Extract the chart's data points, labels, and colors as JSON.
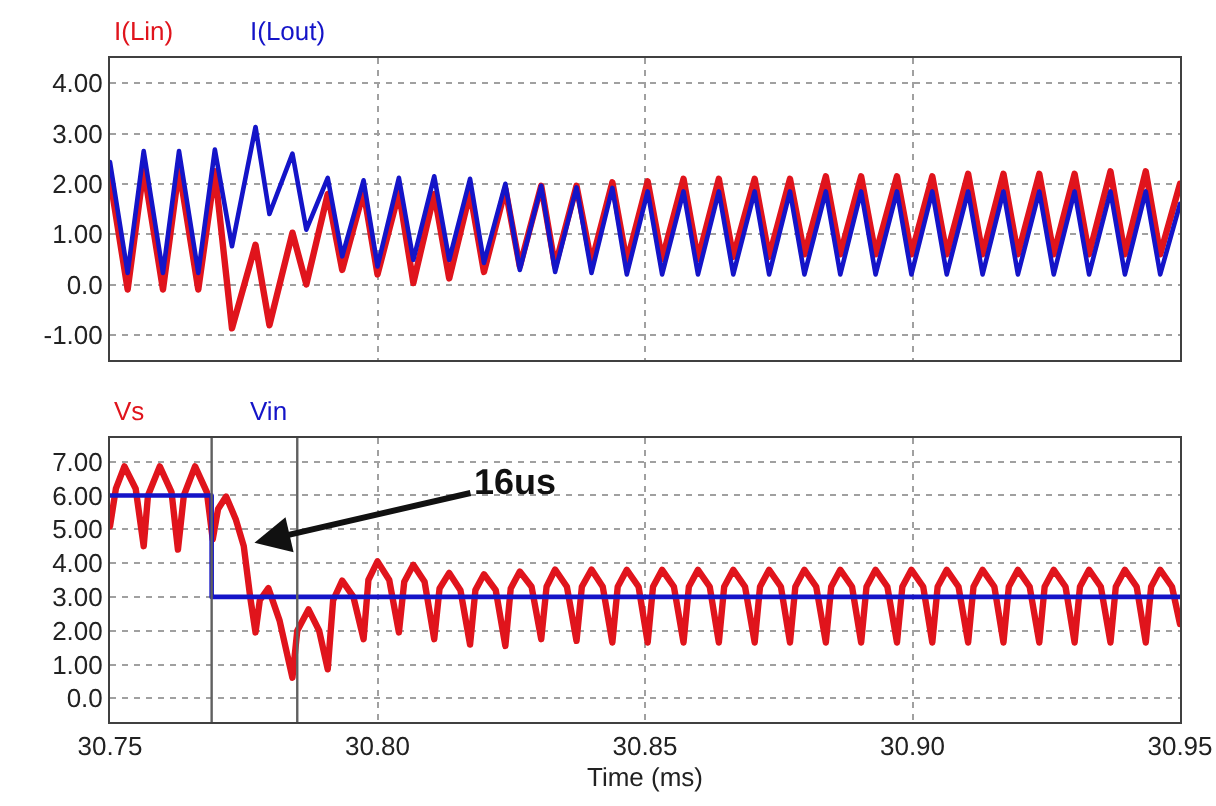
{
  "chart_data": [
    {
      "type": "line",
      "legend": "top left",
      "grid": true,
      "tick_labels": "y",
      "xlim": [
        30.75,
        30.95
      ],
      "xticks": [
        {
          "value": 30.75,
          "label": null
        },
        {
          "value": 30.8,
          "label": null
        },
        {
          "value": 30.85,
          "label": null
        },
        {
          "value": 30.9,
          "label": null
        },
        {
          "value": 30.95,
          "label": null
        }
      ],
      "ylim": [
        -1.5,
        4.5
      ],
      "yticks": [
        {
          "value": 4,
          "label": "4.00"
        },
        {
          "value": 3,
          "label": "3.00"
        },
        {
          "value": 2,
          "label": "2.00"
        },
        {
          "value": 1,
          "label": "1.00"
        },
        {
          "value": 0,
          "label": "0.0"
        },
        {
          "value": -1,
          "label": "-1.00"
        }
      ],
      "x": [
        30.75,
        30.7533,
        30.7563,
        30.7599,
        30.7629,
        30.7665,
        30.7696,
        30.7728,
        30.7772,
        30.7798,
        30.7841,
        30.7867,
        30.7907,
        30.7934,
        30.7974,
        30.8,
        30.804,
        30.8067,
        30.8106,
        30.8134,
        30.8173,
        30.8199,
        30.8239,
        30.8266,
        30.8306,
        30.8332,
        30.8372,
        30.84,
        30.8439,
        30.8466,
        30.8505,
        30.8532,
        30.8572,
        30.8599,
        30.8638,
        30.8665,
        30.8705,
        30.8732,
        30.8771,
        30.8798,
        30.8838,
        30.8865,
        30.8904,
        30.8931,
        30.8971,
        30.8998,
        30.9037,
        30.9064,
        30.9104,
        30.9131,
        30.917,
        30.9197,
        30.9237,
        30.9264,
        30.9303,
        30.933,
        30.937,
        30.9397,
        30.9436,
        30.9463,
        30.95
      ],
      "series": [
        {
          "name": "I(Lin)",
          "color": "#e0141c",
          "values": [
            2.1,
            -0.1,
            2.3,
            -0.1,
            2.3,
            -0.1,
            2.25,
            -0.87,
            0.79,
            -0.81,
            1.03,
            0.0,
            1.8,
            0.29,
            1.85,
            0.2,
            1.83,
            0.03,
            1.8,
            0.12,
            1.83,
            0.25,
            1.9,
            0.36,
            1.96,
            0.36,
            1.96,
            0.43,
            2.03,
            0.45,
            2.05,
            0.5,
            2.1,
            0.5,
            2.1,
            0.55,
            2.1,
            0.55,
            2.1,
            0.6,
            2.15,
            0.6,
            2.15,
            0.6,
            2.15,
            0.6,
            2.15,
            0.6,
            2.2,
            0.6,
            2.2,
            0.6,
            2.2,
            0.6,
            2.2,
            0.6,
            2.25,
            0.6,
            2.25,
            0.6,
            2.0
          ]
        },
        {
          "name": "I(Lout)",
          "color": "#1414c8",
          "values": [
            2.43,
            0.23,
            2.65,
            0.23,
            2.65,
            0.23,
            2.68,
            0.76,
            3.13,
            1.4,
            2.6,
            1.09,
            2.12,
            0.56,
            2.07,
            0.36,
            2.12,
            0.49,
            2.15,
            0.49,
            2.1,
            0.43,
            2.0,
            0.29,
            1.96,
            0.25,
            1.93,
            0.23,
            1.92,
            0.2,
            1.85,
            0.2,
            1.85,
            0.2,
            1.85,
            0.2,
            1.85,
            0.2,
            1.85,
            0.2,
            1.85,
            0.2,
            1.85,
            0.2,
            1.85,
            0.2,
            1.85,
            0.2,
            1.85,
            0.2,
            1.85,
            0.2,
            1.85,
            0.2,
            1.85,
            0.2,
            1.85,
            0.2,
            1.85,
            0.2,
            1.6
          ]
        }
      ]
    },
    {
      "type": "line",
      "legend": "top left",
      "grid": true,
      "xlabel": "Time (ms)",
      "xlim": [
        30.75,
        30.95
      ],
      "xticks": [
        {
          "value": 30.75,
          "label": "30.75"
        },
        {
          "value": 30.8,
          "label": "30.80"
        },
        {
          "value": 30.85,
          "label": "30.85"
        },
        {
          "value": 30.9,
          "label": "30.90"
        },
        {
          "value": 30.95,
          "label": "30.95"
        }
      ],
      "ylim": [
        -0.7,
        7.7
      ],
      "yticks": [
        {
          "value": 7,
          "label": "7.00"
        },
        {
          "value": 6,
          "label": "6.00"
        },
        {
          "value": 5,
          "label": "5.00"
        },
        {
          "value": 4,
          "label": "4.00"
        },
        {
          "value": 3,
          "label": "3.00"
        },
        {
          "value": 2,
          "label": "2.00"
        },
        {
          "value": 1,
          "label": "1.00"
        },
        {
          "value": 0,
          "label": "0.0"
        }
      ],
      "ref_lines": [
        {
          "axis": "x",
          "value": 30.769,
          "color": "#606060"
        },
        {
          "axis": "x",
          "value": 30.785,
          "color": "#606060"
        }
      ],
      "annotations": [
        {
          "text": "16us",
          "x": 30.777,
          "y": 4.6
        }
      ],
      "series": [
        {
          "name": "Vs",
          "color": "#e0141c",
          "x": [
            30.75,
            30.7511,
            30.7527,
            30.7548,
            30.7563,
            30.7571,
            30.7593,
            30.7615,
            30.7627,
            30.7638,
            30.7659,
            30.7681,
            30.7692,
            30.7702,
            30.7717,
            30.7735,
            30.775,
            30.7762,
            30.7772,
            30.778,
            30.7796,
            30.7817,
            30.7841,
            30.785,
            30.7871,
            30.7891,
            30.7907,
            30.7917,
            30.7934,
            30.7955,
            30.7974,
            30.7983,
            30.8,
            30.8022,
            30.804,
            30.805,
            30.8067,
            30.8088,
            30.8106,
            30.8116,
            30.8134,
            30.8155,
            30.8173,
            30.8183,
            30.8199,
            30.8221,
            30.8239,
            30.8249,
            30.8266,
            30.8288,
            30.8306,
            30.8316,
            30.8332,
            30.8354,
            30.8372,
            30.8382,
            30.84,
            30.8421,
            30.8439,
            30.8449,
            30.8466,
            30.8488,
            30.8505,
            30.8515,
            30.8532,
            30.8554,
            30.8572,
            30.8582,
            30.8599,
            30.8621,
            30.8638,
            30.8648,
            30.8665,
            30.8687,
            30.8705,
            30.8715,
            30.8732,
            30.8754,
            30.8771,
            30.8781,
            30.8798,
            30.882,
            30.8838,
            30.8848,
            30.8865,
            30.8887,
            30.8904,
            30.8914,
            30.8931,
            30.8953,
            30.8971,
            30.8981,
            30.8998,
            30.902,
            30.9037,
            30.9047,
            30.9064,
            30.9086,
            30.9104,
            30.9114,
            30.9131,
            30.9153,
            30.917,
            30.918,
            30.9197,
            30.9219,
            30.9237,
            30.9247,
            30.9264,
            30.9286,
            30.9303,
            30.9313,
            30.933,
            30.9352,
            30.937,
            30.938,
            30.9397,
            30.9419,
            30.9436,
            30.9446,
            30.9463,
            30.9485,
            30.95
          ],
          "values": [
            5.09,
            6.2,
            6.86,
            6.2,
            4.5,
            6.0,
            6.86,
            6.1,
            4.4,
            6.0,
            6.86,
            6.1,
            4.7,
            5.6,
            5.97,
            5.3,
            4.5,
            3.0,
            1.95,
            2.9,
            3.26,
            2.3,
            0.61,
            2.0,
            2.63,
            2.0,
            0.86,
            2.9,
            3.48,
            3.0,
            1.75,
            3.5,
            4.05,
            3.5,
            1.95,
            3.45,
            3.95,
            3.45,
            1.75,
            3.25,
            3.71,
            3.2,
            1.59,
            3.2,
            3.67,
            3.2,
            1.55,
            3.25,
            3.75,
            3.3,
            1.75,
            3.3,
            3.81,
            3.3,
            1.7,
            3.3,
            3.81,
            3.3,
            1.65,
            3.3,
            3.8,
            3.3,
            1.65,
            3.3,
            3.8,
            3.3,
            1.65,
            3.3,
            3.8,
            3.3,
            1.65,
            3.3,
            3.8,
            3.3,
            1.65,
            3.3,
            3.8,
            3.3,
            1.65,
            3.3,
            3.8,
            3.3,
            1.65,
            3.3,
            3.8,
            3.3,
            1.65,
            3.3,
            3.8,
            3.3,
            1.65,
            3.3,
            3.8,
            3.3,
            1.65,
            3.3,
            3.8,
            3.3,
            1.65,
            3.3,
            3.8,
            3.3,
            1.65,
            3.3,
            3.8,
            3.3,
            1.65,
            3.3,
            3.8,
            3.3,
            1.65,
            3.3,
            3.8,
            3.3,
            1.65,
            3.3,
            3.8,
            3.3,
            1.65,
            3.3,
            3.8,
            3.3,
            2.2
          ]
        },
        {
          "name": "Vin",
          "color": "#1414c8",
          "x": [
            30.75,
            30.769,
            30.769,
            30.95
          ],
          "values": [
            6,
            6,
            3,
            3
          ]
        }
      ]
    }
  ]
}
